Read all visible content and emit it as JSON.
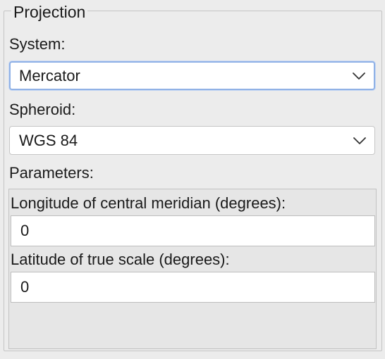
{
  "projection": {
    "title": "Projection",
    "system": {
      "label": "System:",
      "value": "Mercator"
    },
    "spheroid": {
      "label": "Spheroid:",
      "value": "WGS 84"
    },
    "parameters": {
      "label": "Parameters:",
      "fields": [
        {
          "label": "Longitude of central meridian (degrees):",
          "value": "0"
        },
        {
          "label": "Latitude of true scale (degrees):",
          "value": "0"
        }
      ]
    }
  },
  "icons": {
    "dropdown": "chevron-down-icon"
  },
  "colors": {
    "background": "#ececec",
    "focus_ring": "#8fb1e6",
    "field_background": "#ffffff"
  }
}
